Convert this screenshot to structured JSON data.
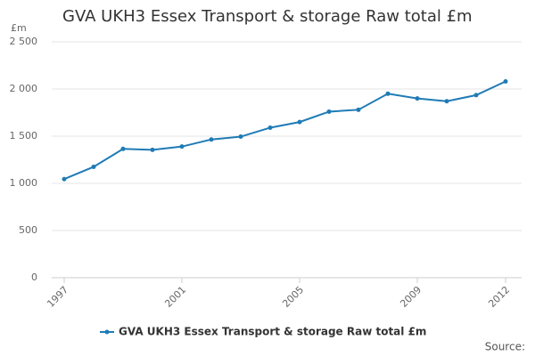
{
  "chart_data": {
    "type": "line",
    "title": "GVA UKH3 Essex Transport & storage Raw total £m",
    "y_unit_label": "£m",
    "source": "Source:",
    "x": [
      1997,
      1998,
      1999,
      2000,
      2001,
      2002,
      2003,
      2004,
      2005,
      2006,
      2007,
      2008,
      2009,
      2010,
      2011,
      2012
    ],
    "series": [
      {
        "name": "GVA UKH3 Essex Transport & storage Raw total £m",
        "color": "#1f7bb6",
        "values": [
          1045,
          1175,
          1365,
          1355,
          1390,
          1465,
          1495,
          1590,
          1650,
          1760,
          1780,
          1950,
          1900,
          1870,
          1935,
          2080
        ]
      }
    ],
    "xlim": [
      1997,
      2012
    ],
    "xticks": [
      1997,
      2001,
      2005,
      2009,
      2012
    ],
    "ylim": [
      0,
      2500
    ],
    "yticks": [
      0,
      500,
      {
        "value": 1000,
        "label": "1 000"
      },
      {
        "value": 1500,
        "label": "1 500"
      },
      {
        "value": 2000,
        "label": "2 000"
      },
      {
        "value": 2500,
        "label": "2 500"
      }
    ],
    "grid": true
  }
}
